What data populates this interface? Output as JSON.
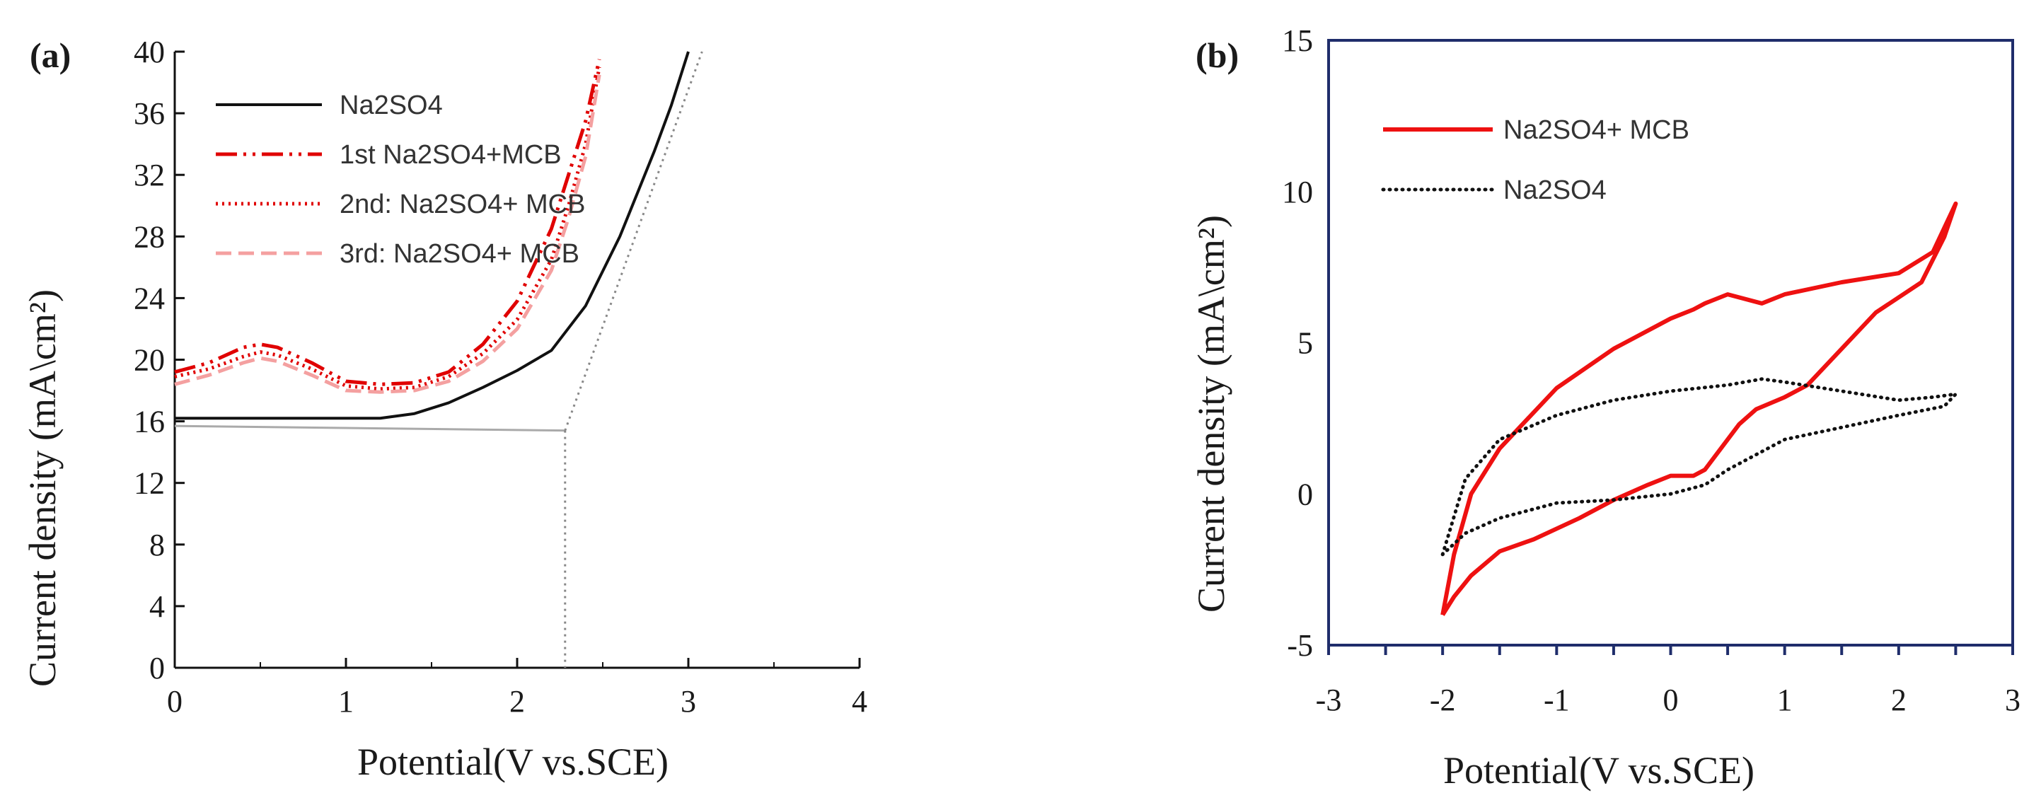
{
  "chart_data": [
    {
      "panel": "(a)",
      "type": "line",
      "xlabel": "Potential(V vs.SCE)",
      "ylabel": "Current  density (mA\\cm²)",
      "xlim": [
        0,
        4
      ],
      "ylim": [
        0,
        40
      ],
      "x_ticks": [
        "0",
        "1",
        "2",
        "3",
        "4"
      ],
      "y_ticks": [
        "0",
        "4",
        "8",
        "12",
        "16",
        "20",
        "24",
        "28",
        "32",
        "36",
        "40"
      ],
      "grid": false,
      "legend_position": "top-left",
      "colors": {
        "black": "#111111",
        "red": "#e00000",
        "pink": "#f4a0a0",
        "guide": "#999999"
      },
      "series": [
        {
          "name": "Na2SO4",
          "style": "solid",
          "color": "#111111",
          "x": [
            0,
            0.5,
            1.0,
            1.2,
            1.4,
            1.6,
            1.8,
            2.0,
            2.2,
            2.4,
            2.6,
            2.8,
            2.9,
            3.0
          ],
          "y": [
            16.2,
            16.2,
            16.2,
            16.2,
            16.5,
            17.2,
            18.2,
            19.3,
            20.6,
            23.5,
            28.0,
            33.5,
            36.5,
            40.0
          ]
        },
        {
          "name": "1st Na2SO4+MCB",
          "style": "dashdotdot",
          "color": "#e00000",
          "x": [
            0,
            0.2,
            0.4,
            0.5,
            0.6,
            0.8,
            1.0,
            1.2,
            1.4,
            1.6,
            1.8,
            2.0,
            2.2,
            2.3,
            2.4,
            2.48
          ],
          "y": [
            19.2,
            19.8,
            20.8,
            21.0,
            20.8,
            19.8,
            18.6,
            18.4,
            18.5,
            19.2,
            21.0,
            23.8,
            28.5,
            32.0,
            35.5,
            39.5
          ]
        },
        {
          "name": "2nd: Na2SO4+ MCB",
          "style": "dotted",
          "color": "#e00000",
          "x": [
            0,
            0.2,
            0.4,
            0.5,
            0.6,
            0.8,
            1.0,
            1.2,
            1.4,
            1.6,
            1.8,
            2.0,
            2.2,
            2.3,
            2.4,
            2.48
          ],
          "y": [
            18.9,
            19.4,
            20.2,
            20.5,
            20.3,
            19.4,
            18.3,
            18.1,
            18.2,
            18.9,
            20.4,
            22.6,
            26.5,
            30.0,
            34.0,
            39.0
          ]
        },
        {
          "name": "3rd: Na2SO4+ MCB",
          "style": "dashed",
          "color": "#f4a0a0",
          "x": [
            0,
            0.2,
            0.4,
            0.5,
            0.6,
            0.8,
            1.0,
            1.2,
            1.4,
            1.6,
            1.8,
            2.0,
            2.2,
            2.3,
            2.4,
            2.48
          ],
          "y": [
            18.4,
            19.0,
            19.8,
            20.1,
            19.9,
            19.0,
            18.0,
            17.9,
            18.0,
            18.6,
            19.9,
            22.0,
            25.8,
            29.2,
            33.2,
            38.5
          ]
        }
      ],
      "guide_lines": [
        {
          "x": [
            0,
            2.28
          ],
          "y": [
            15.7,
            15.4
          ],
          "color": "#aaaaaa",
          "style": "solid"
        },
        {
          "x": [
            2.28,
            3.08
          ],
          "y": [
            15.4,
            40.0
          ],
          "color": "#888888",
          "style": "dotted"
        },
        {
          "x": [
            2.28,
            2.28
          ],
          "y": [
            15.4,
            0
          ],
          "color": "#888888",
          "style": "dotted"
        }
      ]
    },
    {
      "panel": "(b)",
      "type": "line",
      "xlabel": "Potential(V vs.SCE)",
      "ylabel": "Current  density (mA\\cm²)",
      "xlim": [
        -3,
        3
      ],
      "ylim": [
        -5,
        15
      ],
      "x_ticks": [
        "-3",
        "-2",
        "-1",
        "0",
        "1",
        "2",
        "3"
      ],
      "y_ticks": [
        "-5",
        "0",
        "5",
        "10",
        "15"
      ],
      "grid": false,
      "legend_position": "top-left",
      "colors": {
        "red": "#ee1111",
        "black": "#111111",
        "axis": "#1f2d6b"
      },
      "series": [
        {
          "name": "Na2SO4+ MCB",
          "style": "solid",
          "color": "#ee1111",
          "x": [
            -2.0,
            -1.9,
            -1.75,
            -1.5,
            -1.0,
            -0.5,
            0.0,
            0.2,
            0.3,
            0.5,
            0.8,
            1.0,
            1.5,
            2.0,
            2.3,
            2.5,
            2.4,
            2.2,
            1.8,
            1.5,
            1.2,
            1.0,
            0.75,
            0.6,
            0.5,
            0.3,
            0.2,
            0.0,
            -0.2,
            -0.5,
            -0.8,
            -1.2,
            -1.5,
            -1.75,
            -1.9,
            -2.0
          ],
          "y": [
            -4.0,
            -2.0,
            0.0,
            1.5,
            3.5,
            4.8,
            5.8,
            6.1,
            6.3,
            6.6,
            6.3,
            6.6,
            7.0,
            7.3,
            8.0,
            9.6,
            8.5,
            7.0,
            6.0,
            4.8,
            3.6,
            3.2,
            2.8,
            2.3,
            1.8,
            0.8,
            0.6,
            0.6,
            0.3,
            -0.2,
            -0.8,
            -1.5,
            -1.9,
            -2.7,
            -3.4,
            -4.0
          ]
        },
        {
          "name": "Na2SO4",
          "style": "dotted",
          "color": "#111111",
          "x": [
            -2.0,
            -1.8,
            -1.5,
            -1.0,
            -0.5,
            0.0,
            0.5,
            0.8,
            1.0,
            1.5,
            2.0,
            2.3,
            2.5,
            2.4,
            2.0,
            1.5,
            1.0,
            0.5,
            0.3,
            0.0,
            -0.5,
            -1.0,
            -1.5,
            -1.8,
            -2.0
          ],
          "y": [
            -2.0,
            0.5,
            1.8,
            2.6,
            3.1,
            3.4,
            3.6,
            3.8,
            3.7,
            3.4,
            3.1,
            3.2,
            3.3,
            2.9,
            2.6,
            2.2,
            1.8,
            0.8,
            0.3,
            0.0,
            -0.2,
            -0.3,
            -0.8,
            -1.3,
            -2.0
          ]
        }
      ]
    }
  ]
}
